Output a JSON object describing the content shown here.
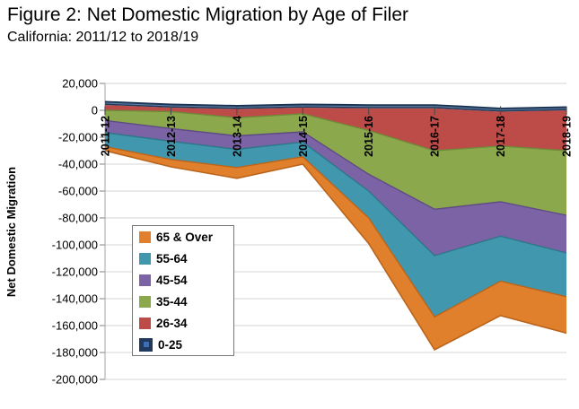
{
  "header": {
    "title": "Figure 2: Net Domestic Migration by Age of Filer",
    "subtitle": "California: 2011/12 to 2018/19"
  },
  "chart_data": {
    "type": "area",
    "stacked": true,
    "title": "Figure 2: Net Domestic Migration by Age of Filer",
    "subtitle": "California: 2011/12 to 2018/19",
    "xlabel": "",
    "ylabel": "Net Domestic Migration",
    "ylim": [
      -200000,
      20000
    ],
    "ytick_step": 20000,
    "grid": true,
    "legend_position": "inside-lower-left",
    "categories": [
      "2011-12",
      "2012-13",
      "2013-14",
      "2014-15",
      "2015-16",
      "2016-17",
      "2017-18",
      "2018-19"
    ],
    "ytick_labels": [
      "20,000",
      "0",
      "-20,000",
      "-40,000",
      "-60,000",
      "-80,000",
      "-100,000",
      "-120,000",
      "-140,000",
      "-160,000",
      "-180,000",
      "-200,000"
    ],
    "series": [
      {
        "name": "65 & Over",
        "fill": "#E0802D",
        "border": "#BA641B",
        "values": [
          -3000,
          -5500,
          -8000,
          -5500,
          -19000,
          -24500,
          -25500,
          -27000
        ]
      },
      {
        "name": "55-64",
        "fill": "#4198AE",
        "border": "#2F7689",
        "values": [
          -10500,
          -13500,
          -13500,
          -11000,
          -20000,
          -45500,
          -33500,
          -32500
        ]
      },
      {
        "name": "45-54",
        "fill": "#7C63A5",
        "border": "#5F4B84",
        "values": [
          -9000,
          -9500,
          -10000,
          -7500,
          -12500,
          -34500,
          -25500,
          -28000
        ]
      },
      {
        "name": "35-44",
        "fill": "#8BA84D",
        "border": "#6F8A39",
        "values": [
          -7500,
          -12500,
          -13500,
          -13500,
          -32500,
          -43500,
          -41500,
          -48000
        ]
      },
      {
        "name": "26-34",
        "fill": "#BD4B48",
        "border": "#9A3835",
        "values": [
          -4000,
          -3000,
          -6500,
          -4500,
          -16500,
          -31500,
          -25500,
          -30000
        ]
      },
      {
        "name": "0-25",
        "fill": "#20395C",
        "border": "#16304F",
        "inner_line": "#5E7F9F",
        "values": [
          4000,
          2000,
          1000,
          2000,
          1500,
          1500,
          -1000,
          0
        ]
      }
    ],
    "totals": [
      -30000,
      -42000,
      -50500,
      -40000,
      -99000,
      -178000,
      -152500,
      -165500
    ],
    "colors": {
      "gridline": "#D6D6D6",
      "axis": "#A6A6A6",
      "tick": "#808080",
      "category_tick": "#4D4D4D",
      "text": "#000000"
    }
  }
}
